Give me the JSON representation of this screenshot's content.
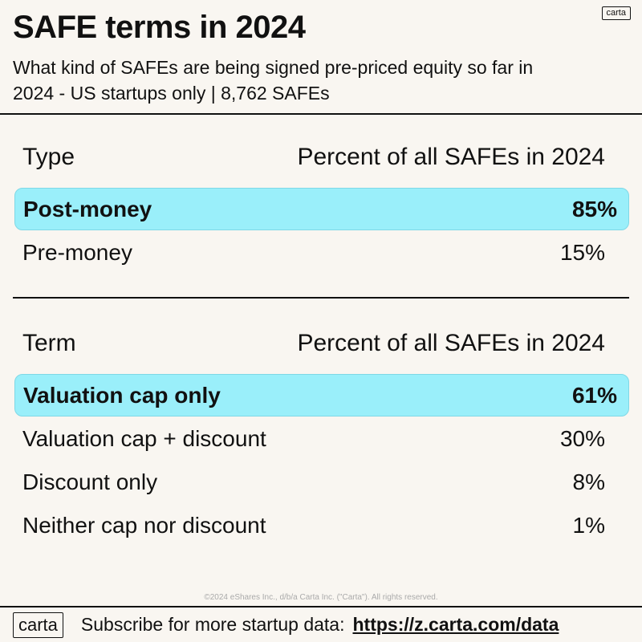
{
  "header": {
    "logo_text": "carta",
    "title": "SAFE terms in 2024",
    "subtitle": "What kind of SAFEs are being signed pre-priced equity so far in 2024 - US startups only | 8,762 SAFEs"
  },
  "chart_data": [
    {
      "type": "table",
      "columns": [
        "Type",
        "Percent of all SAFEs in 2024"
      ],
      "rows": [
        {
          "label": "Post-money",
          "value": "85%",
          "highlight": true
        },
        {
          "label": "Pre-money",
          "value": "15%",
          "highlight": false
        }
      ]
    },
    {
      "type": "table",
      "columns": [
        "Term",
        "Percent of all SAFEs in 2024"
      ],
      "rows": [
        {
          "label": "Valuation cap only",
          "value": "61%",
          "highlight": true
        },
        {
          "label": "Valuation cap + discount",
          "value": "30%",
          "highlight": false
        },
        {
          "label": "Discount only",
          "value": "8%",
          "highlight": false
        },
        {
          "label": "Neither cap nor discount",
          "value": "1%",
          "highlight": false
        }
      ]
    }
  ],
  "colors": {
    "background": "#f9f6f1",
    "highlight": "#9aeffa"
  },
  "footer": {
    "copyright": "©2024 eShares Inc., d/b/a Carta Inc. (\"Carta\"). All rights reserved.",
    "logo_text": "carta",
    "cta_text": "Subscribe for more startup data:",
    "link_text": "https://z.carta.com/data"
  }
}
